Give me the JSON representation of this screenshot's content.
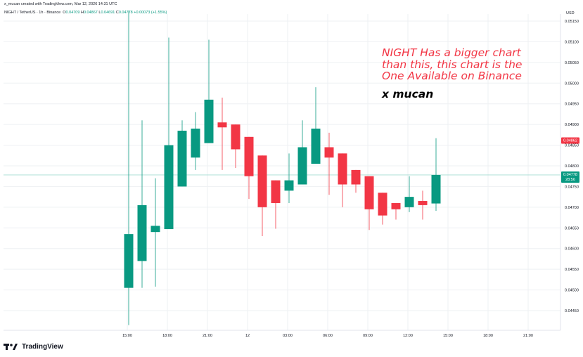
{
  "header": {
    "created_by": "x_mucan created with TradingView.com, Mar 12, 2026 14:31 UTC",
    "symbol_line": "NIGHT / TetherUS · 1h · Binance",
    "ohlc": {
      "o_label": "O",
      "o": "0.04709",
      "h_label": "H",
      "h": "0.04867",
      "l_label": "L",
      "l": "0.04691",
      "c_label": "C",
      "c": "0.04778",
      "change": "+0.00073 (+1.55%)"
    }
  },
  "axis_currency": "USD",
  "annotations": {
    "red_lines": [
      "NIGHT Has a bigger chart",
      "than this, this chart is the",
      "One Available on Binance"
    ],
    "signature": "x mucan"
  },
  "logo_text": "TradingView",
  "colors": {
    "up": "#089981",
    "down": "#f23645",
    "grid": "#eef0f3",
    "crosshair": "#a5dcd3"
  },
  "chart_data": {
    "type": "candlestick",
    "y_ticks": [
      "0.05150",
      "0.05100",
      "0.05050",
      "0.05000",
      "0.04950",
      "0.04900",
      "0.04850",
      "0.04800",
      "0.04750",
      "0.04700",
      "0.04650",
      "0.04600",
      "0.04550",
      "0.04500",
      "0.04450"
    ],
    "ylim": [
      0.0442,
      0.0518
    ],
    "x_ticks": [
      "15:00",
      "18:00",
      "21:00",
      "12",
      "03:00",
      "06:00",
      "09:00",
      "12:00",
      "15:00",
      "18:00",
      "21:00"
    ],
    "price_labels": {
      "high_tag": "0.04862",
      "last": "0.04778",
      "countdown": "28:56"
    },
    "candles": [
      {
        "o": 0.04505,
        "h": 0.05175,
        "l": 0.04415,
        "c": 0.04635
      },
      {
        "o": 0.0457,
        "h": 0.0491,
        "l": 0.04505,
        "c": 0.04705
      },
      {
        "o": 0.0464,
        "h": 0.0477,
        "l": 0.04508,
        "c": 0.04655
      },
      {
        "o": 0.04647,
        "h": 0.0511,
        "l": 0.04647,
        "c": 0.0485
      },
      {
        "o": 0.0475,
        "h": 0.0491,
        "l": 0.0475,
        "c": 0.04885
      },
      {
        "o": 0.0482,
        "h": 0.0493,
        "l": 0.0479,
        "c": 0.0489
      },
      {
        "o": 0.04855,
        "h": 0.05105,
        "l": 0.04855,
        "c": 0.0496
      },
      {
        "o": 0.04905,
        "h": 0.04965,
        "l": 0.0479,
        "c": 0.04893
      },
      {
        "o": 0.049,
        "h": 0.049,
        "l": 0.04795,
        "c": 0.0484
      },
      {
        "o": 0.0487,
        "h": 0.0487,
        "l": 0.0472,
        "c": 0.04775
      },
      {
        "o": 0.04825,
        "h": 0.04825,
        "l": 0.0463,
        "c": 0.047
      },
      {
        "o": 0.04765,
        "h": 0.04765,
        "l": 0.04648,
        "c": 0.0471
      },
      {
        "o": 0.0474,
        "h": 0.0483,
        "l": 0.0471,
        "c": 0.04765
      },
      {
        "o": 0.04755,
        "h": 0.0491,
        "l": 0.04755,
        "c": 0.04845
      },
      {
        "o": 0.04805,
        "h": 0.0499,
        "l": 0.04805,
        "c": 0.0489
      },
      {
        "o": 0.04845,
        "h": 0.0488,
        "l": 0.0473,
        "c": 0.0482
      },
      {
        "o": 0.0483,
        "h": 0.0483,
        "l": 0.047,
        "c": 0.04755
      },
      {
        "o": 0.0479,
        "h": 0.0479,
        "l": 0.04735,
        "c": 0.04755
      },
      {
        "o": 0.04775,
        "h": 0.04775,
        "l": 0.04645,
        "c": 0.04695
      },
      {
        "o": 0.04735,
        "h": 0.04735,
        "l": 0.04658,
        "c": 0.0468
      },
      {
        "o": 0.0471,
        "h": 0.0471,
        "l": 0.0467,
        "c": 0.04695
      },
      {
        "o": 0.047,
        "h": 0.04775,
        "l": 0.04688,
        "c": 0.04725
      },
      {
        "o": 0.04715,
        "h": 0.0474,
        "l": 0.0467,
        "c": 0.04705
      },
      {
        "o": 0.04709,
        "h": 0.04867,
        "l": 0.04691,
        "c": 0.04778
      }
    ]
  }
}
